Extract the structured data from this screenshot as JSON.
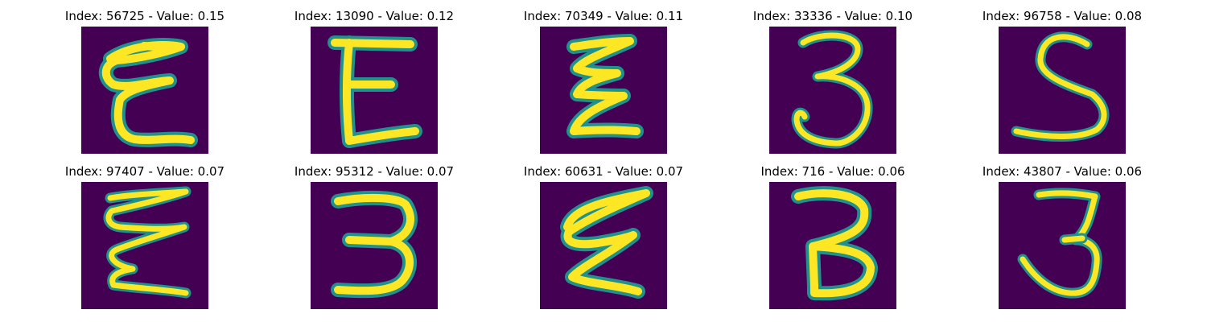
{
  "colors": {
    "background": "#440154",
    "halo": "#21918c",
    "stroke": "#fde725"
  },
  "grid": {
    "rows": 2,
    "columns": 5,
    "panels": [
      {
        "index_text": "Index: 56725 - Value: 0.15",
        "index": 56725,
        "value": 0.15,
        "glyph": "Ɛ-like stroke"
      },
      {
        "index_text": "Index: 13090 - Value: 0.12",
        "index": 13090,
        "value": 0.12,
        "glyph": "E-like stroke"
      },
      {
        "index_text": "Index: 70349 - Value: 0.11",
        "index": 70349,
        "value": 0.11,
        "glyph": "Ɛ-like stroke"
      },
      {
        "index_text": "Index: 33336 - Value: 0.10",
        "index": 33336,
        "value": 0.1,
        "glyph": "3-like stroke"
      },
      {
        "index_text": "Index: 96758 - Value: 0.08",
        "index": 96758,
        "value": 0.08,
        "glyph": "S-like stroke"
      },
      {
        "index_text": "Index: 97407 - Value: 0.07",
        "index": 97407,
        "value": 0.07,
        "glyph": "Ɛ-like stroke"
      },
      {
        "index_text": "Index: 95312 - Value: 0.07",
        "index": 95312,
        "value": 0.07,
        "glyph": "3-like stroke"
      },
      {
        "index_text": "Index: 60631 - Value: 0.07",
        "index": 60631,
        "value": 0.07,
        "glyph": "Ɛ-like stroke"
      },
      {
        "index_text": "Index: 716 - Value: 0.06",
        "index": 716,
        "value": 0.06,
        "glyph": "3-like stroke"
      },
      {
        "index_text": "Index: 43807 - Value: 0.06",
        "index": 43807,
        "value": 0.06,
        "glyph": "3-like stroke"
      }
    ]
  }
}
